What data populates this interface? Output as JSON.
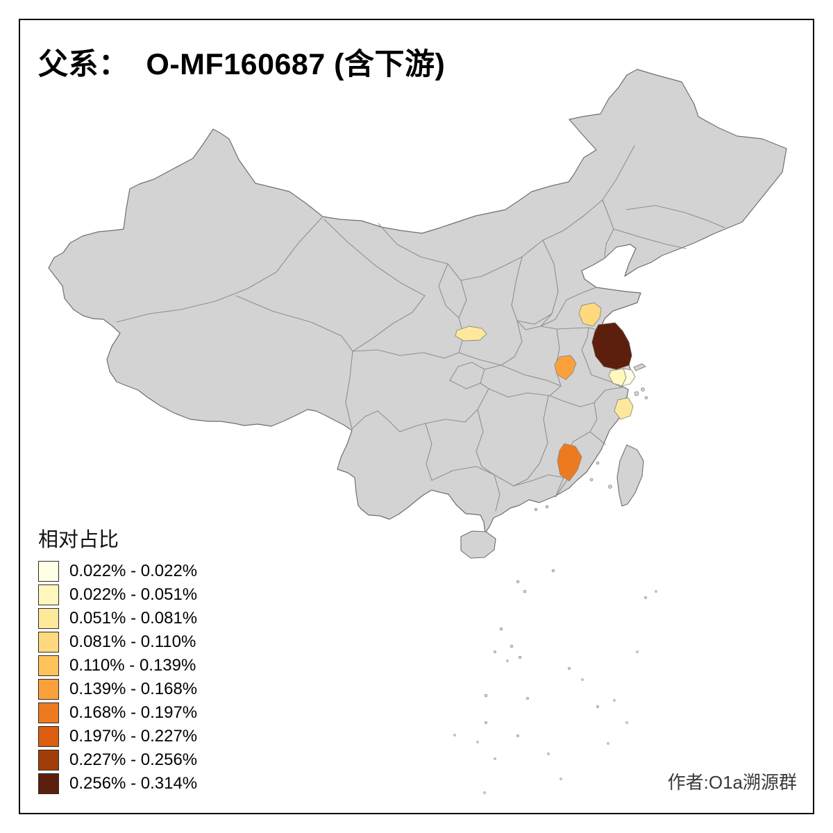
{
  "title": "父系：  O-MF160687 (含下游)",
  "author": "作者:O1a溯源群",
  "legend": {
    "title": "相对占比",
    "bins": [
      {
        "label": "0.022% - 0.022%",
        "color": "#FFFFE5"
      },
      {
        "label": "0.022% - 0.051%",
        "color": "#FFF7BE"
      },
      {
        "label": "0.051% - 0.081%",
        "color": "#FEE89C"
      },
      {
        "label": "0.081% - 0.110%",
        "color": "#FED97D"
      },
      {
        "label": "0.110% - 0.139%",
        "color": "#FEC35B"
      },
      {
        "label": "0.139% - 0.168%",
        "color": "#FBA13C"
      },
      {
        "label": "0.168% - 0.197%",
        "color": "#EE7A1F"
      },
      {
        "label": "0.197% - 0.227%",
        "color": "#DB5E10"
      },
      {
        "label": "0.227% - 0.256%",
        "color": "#A13E09"
      },
      {
        "label": "0.256% - 0.314%",
        "color": "#5C1F0D"
      }
    ]
  },
  "map": {
    "land_color": "#D3D3D3",
    "outline_color": "#6E6E6E",
    "province_border_color": "#8F8F8F",
    "regions": [
      {
        "id": "shanghai-area-lightest",
        "bin_index": 0,
        "bin_label": "0.022% - 0.022%"
      },
      {
        "id": "shanghai-area-pale",
        "bin_index": 1,
        "bin_label": "0.022% - 0.051%"
      },
      {
        "id": "northwest-gansu-region",
        "bin_index": 2,
        "bin_label": "0.051% - 0.081%"
      },
      {
        "id": "zhejiang-coastal-region",
        "bin_index": 2,
        "bin_label": "0.051% - 0.081%"
      },
      {
        "id": "shandong-region",
        "bin_index": 3,
        "bin_label": "0.081% - 0.110%"
      },
      {
        "id": "anhui-region",
        "bin_index": 5,
        "bin_label": "0.139% - 0.168%"
      },
      {
        "id": "fujian-region",
        "bin_index": 6,
        "bin_label": "0.168% - 0.197%"
      },
      {
        "id": "jiangsu-coastal-region",
        "bin_index": 9,
        "bin_label": "0.256% - 0.314%"
      }
    ]
  }
}
